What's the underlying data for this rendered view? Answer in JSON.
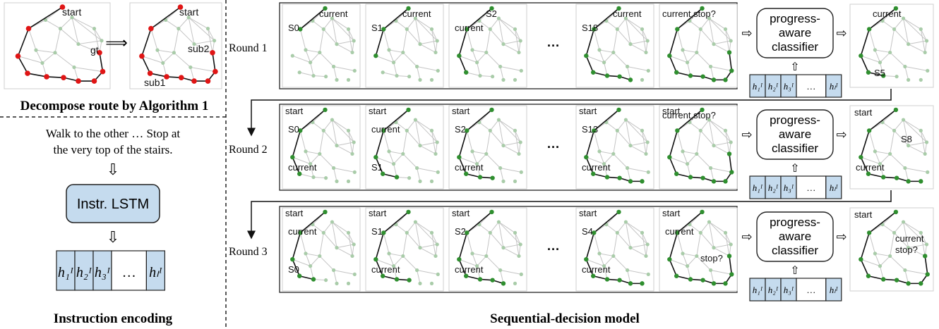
{
  "colors": {
    "graph_edge": "#c4c4c4",
    "graph_node": "#a9cca9",
    "route_node": "#2f8f2f",
    "route_line": "#111111",
    "gt_node": "#e01515",
    "blue_box": "#c5dbee",
    "box_stroke": "#222222"
  },
  "left": {
    "decompose": {
      "panel1_labels": {
        "start": "start",
        "gt": "gt"
      },
      "panel2_labels": {
        "start": "start",
        "sub1": "sub1",
        "sub2": "sub2"
      },
      "arrow": "⟹",
      "caption": "Decompose route by Algorithm 1"
    },
    "instruction": {
      "line1": "Walk to the other … Stop at",
      "line2": "the very top of the stairs.",
      "arrow": "⇩",
      "lstm_label": "Instr. LSTM",
      "caption": "Instruction encoding",
      "h_cells": [
        "h₁ᴵ",
        "h₂ᴵ",
        "h₃ᴵ",
        "…",
        "hₗᴵ"
      ]
    }
  },
  "main": {
    "caption": "Sequential-decision model",
    "classifier_line1": "progress-",
    "classifier_line2": "aware",
    "classifier_line3": "classifier",
    "dots": "···",
    "right_arrow": "⇨",
    "up_arrow": "⇧",
    "rounds": [
      {
        "label": "Round 1",
        "frames": [
          {
            "labels": [
              "current",
              "S0"
            ]
          },
          {
            "labels": [
              "current",
              "S1"
            ]
          },
          {
            "labels": [
              "S2",
              "current"
            ]
          },
          {
            "labels": [
              "current",
              "S18"
            ]
          },
          {
            "labels": [
              "current,stop?"
            ]
          }
        ],
        "output_labels": [
          "current",
          "S5"
        ]
      },
      {
        "label": "Round 2",
        "frames": [
          {
            "labels": [
              "start",
              "S0",
              "current"
            ]
          },
          {
            "labels": [
              "start",
              "current",
              "S1"
            ]
          },
          {
            "labels": [
              "start",
              "S2",
              "current"
            ]
          },
          {
            "labels": [
              "start",
              "S13",
              "current"
            ]
          },
          {
            "labels": [
              "start",
              "current,stop?"
            ]
          }
        ],
        "output_labels": [
          "start",
          "S8",
          "current"
        ]
      },
      {
        "label": "Round 3",
        "frames": [
          {
            "labels": [
              "start",
              "current",
              "S0"
            ]
          },
          {
            "labels": [
              "start",
              "S1",
              "current"
            ]
          },
          {
            "labels": [
              "start",
              "S2",
              "current"
            ]
          },
          {
            "labels": [
              "start",
              "S4",
              "current"
            ]
          },
          {
            "labels": [
              "start",
              "current",
              "stop?"
            ]
          }
        ],
        "output_labels": [
          "start",
          "current",
          "stop?"
        ]
      }
    ]
  }
}
